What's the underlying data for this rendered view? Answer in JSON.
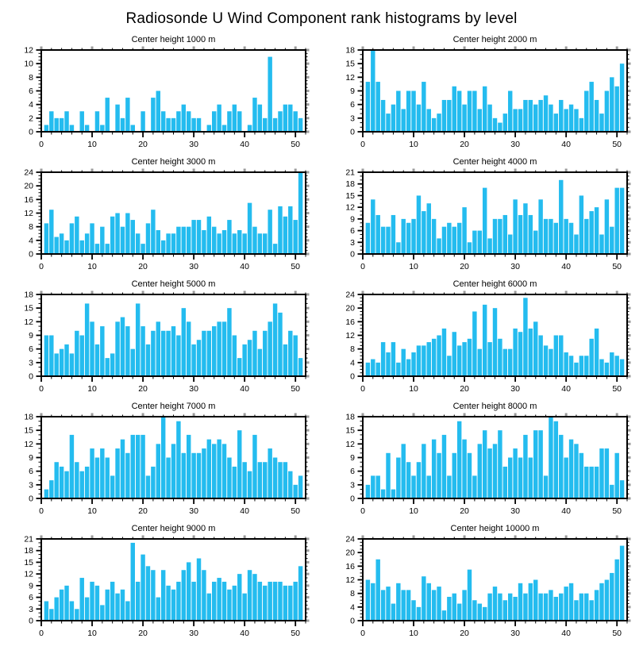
{
  "page_title": "Radiosonde U Wind Component rank histograms by level",
  "colors": {
    "bar": "#24BCEF",
    "frame": "#000000",
    "tick": "#000000",
    "major_alt_tick": "#9a9a9a",
    "text": "#000000"
  },
  "chart_data": [
    {
      "type": "bar",
      "title": "Center height 1000 m",
      "xlabel": "",
      "ylabel": "",
      "xlim": [
        0,
        52
      ],
      "ylim": [
        0,
        12
      ],
      "ytick_step": 2,
      "y_minor_step": 0.5,
      "xticks": [
        0,
        10,
        20,
        30,
        40,
        50
      ],
      "x_minor_step": 2,
      "x_start": 1,
      "legend": "none",
      "grid": false,
      "values": [
        1,
        3,
        2,
        2,
        3,
        1,
        0,
        3,
        1,
        0,
        3,
        1,
        5,
        0,
        4,
        2,
        5,
        1,
        0,
        3,
        0,
        5,
        6,
        3,
        2,
        2,
        3,
        4,
        3,
        2,
        2,
        0,
        1,
        3,
        4,
        1,
        3,
        4,
        3,
        0,
        1,
        5,
        4,
        2,
        11,
        2,
        3,
        4,
        4,
        3,
        2
      ]
    },
    {
      "type": "bar",
      "title": "Center height 2000 m",
      "xlabel": "",
      "ylabel": "",
      "xlim": [
        0,
        52
      ],
      "ylim": [
        0,
        18
      ],
      "ytick_step": 3,
      "y_minor_step": 1,
      "xticks": [
        0,
        10,
        20,
        30,
        40,
        50
      ],
      "x_minor_step": 2,
      "x_start": 1,
      "legend": "none",
      "grid": false,
      "values": [
        11,
        18,
        11,
        7,
        4,
        6,
        9,
        5,
        9,
        9,
        6,
        11,
        5,
        3,
        4,
        7,
        7,
        10,
        9,
        6,
        9,
        9,
        5,
        10,
        6,
        3,
        2,
        4,
        9,
        5,
        5,
        7,
        7,
        6,
        7,
        8,
        6,
        4,
        7,
        5,
        6,
        5,
        3,
        9,
        11,
        7,
        4,
        9,
        12,
        10,
        15
      ]
    },
    {
      "type": "bar",
      "title": "Center height 3000 m",
      "xlabel": "",
      "ylabel": "",
      "xlim": [
        0,
        52
      ],
      "ylim": [
        0,
        24
      ],
      "ytick_step": 4,
      "y_minor_step": 1,
      "xticks": [
        0,
        10,
        20,
        30,
        40,
        50
      ],
      "x_minor_step": 2,
      "x_start": 1,
      "legend": "none",
      "grid": false,
      "values": [
        9,
        13,
        5,
        6,
        4,
        9,
        11,
        4,
        6,
        9,
        3,
        8,
        3,
        11,
        12,
        8,
        12,
        10,
        6,
        3,
        9,
        13,
        7,
        4,
        6,
        6,
        8,
        8,
        8,
        10,
        10,
        7,
        11,
        8,
        6,
        7,
        10,
        6,
        7,
        6,
        15,
        8,
        6,
        6,
        13,
        3,
        14,
        11,
        14,
        10,
        24
      ]
    },
    {
      "type": "bar",
      "title": "Center height 4000 m",
      "xlabel": "",
      "ylabel": "",
      "xlim": [
        0,
        52
      ],
      "ylim": [
        0,
        21
      ],
      "ytick_step": 3,
      "y_minor_step": 1,
      "xticks": [
        0,
        10,
        20,
        30,
        40,
        50
      ],
      "x_minor_step": 2,
      "x_start": 1,
      "legend": "none",
      "grid": false,
      "values": [
        8,
        14,
        10,
        7,
        7,
        10,
        3,
        9,
        8,
        9,
        15,
        11,
        13,
        9,
        4,
        7,
        8,
        7,
        8,
        12,
        3,
        6,
        6,
        17,
        4,
        9,
        9,
        10,
        5,
        14,
        10,
        13,
        10,
        6,
        14,
        9,
        9,
        8,
        19,
        9,
        8,
        5,
        15,
        9,
        11,
        12,
        5,
        14,
        7,
        17,
        17
      ]
    },
    {
      "type": "bar",
      "title": "Center height 5000 m",
      "xlabel": "",
      "ylabel": "",
      "xlim": [
        0,
        52
      ],
      "ylim": [
        0,
        18
      ],
      "ytick_step": 3,
      "y_minor_step": 1,
      "xticks": [
        0,
        10,
        20,
        30,
        40,
        50
      ],
      "x_minor_step": 2,
      "x_start": 1,
      "legend": "none",
      "grid": false,
      "values": [
        9,
        9,
        5,
        6,
        7,
        5,
        10,
        9,
        16,
        12,
        7,
        11,
        4,
        5,
        12,
        13,
        11,
        6,
        16,
        11,
        7,
        10,
        12,
        10,
        10,
        11,
        9,
        15,
        12,
        7,
        8,
        10,
        10,
        11,
        12,
        12,
        15,
        9,
        4,
        7,
        8,
        10,
        6,
        10,
        12,
        16,
        14,
        7,
        10,
        9,
        4
      ]
    },
    {
      "type": "bar",
      "title": "Center height 6000 m",
      "xlabel": "",
      "ylabel": "",
      "xlim": [
        0,
        52
      ],
      "ylim": [
        0,
        24
      ],
      "ytick_step": 4,
      "y_minor_step": 1,
      "xticks": [
        0,
        10,
        20,
        30,
        40,
        50
      ],
      "x_minor_step": 2,
      "x_start": 1,
      "legend": "none",
      "grid": false,
      "values": [
        4,
        5,
        4,
        10,
        7,
        10,
        4,
        8,
        5,
        7,
        9,
        9,
        10,
        11,
        12,
        14,
        6,
        13,
        9,
        10,
        11,
        19,
        8,
        21,
        10,
        20,
        11,
        8,
        8,
        14,
        13,
        23,
        14,
        16,
        12,
        9,
        8,
        12,
        12,
        7,
        6,
        4,
        6,
        6,
        11,
        14,
        5,
        4,
        7,
        6,
        5
      ]
    },
    {
      "type": "bar",
      "title": "Center height 7000 m",
      "xlabel": "",
      "ylabel": "",
      "xlim": [
        0,
        52
      ],
      "ylim": [
        0,
        18
      ],
      "ytick_step": 3,
      "y_minor_step": 1,
      "xticks": [
        0,
        10,
        20,
        30,
        40,
        50
      ],
      "x_minor_step": 2,
      "x_start": 1,
      "legend": "none",
      "grid": false,
      "values": [
        2,
        4,
        8,
        7,
        6,
        14,
        8,
        6,
        7,
        11,
        9,
        11,
        9,
        5,
        11,
        13,
        10,
        14,
        14,
        14,
        5,
        7,
        12,
        18,
        9,
        12,
        17,
        10,
        14,
        10,
        10,
        11,
        13,
        12,
        13,
        12,
        9,
        7,
        15,
        8,
        6,
        14,
        8,
        8,
        11,
        9,
        8,
        8,
        6,
        3,
        5
      ]
    },
    {
      "type": "bar",
      "title": "Center height 8000 m",
      "xlabel": "",
      "ylabel": "",
      "xlim": [
        0,
        52
      ],
      "ylim": [
        0,
        18
      ],
      "ytick_step": 3,
      "y_minor_step": 1,
      "xticks": [
        0,
        10,
        20,
        30,
        40,
        50
      ],
      "x_minor_step": 2,
      "x_start": 1,
      "legend": "none",
      "grid": false,
      "values": [
        3,
        5,
        5,
        2,
        10,
        2,
        9,
        12,
        8,
        5,
        8,
        12,
        5,
        13,
        10,
        14,
        5,
        10,
        17,
        13,
        10,
        5,
        12,
        15,
        11,
        12,
        15,
        7,
        9,
        11,
        9,
        14,
        9,
        15,
        15,
        5,
        18,
        17,
        14,
        9,
        13,
        12,
        10,
        7,
        7,
        7,
        11,
        11,
        3,
        10,
        4
      ]
    },
    {
      "type": "bar",
      "title": "Center height 9000 m",
      "xlabel": "",
      "ylabel": "",
      "xlim": [
        0,
        52
      ],
      "ylim": [
        0,
        21
      ],
      "ytick_step": 3,
      "y_minor_step": 1,
      "xticks": [
        0,
        10,
        20,
        30,
        40,
        50
      ],
      "x_minor_step": 2,
      "x_start": 1,
      "legend": "none",
      "grid": false,
      "values": [
        5,
        3,
        6,
        8,
        9,
        5,
        3,
        11,
        6,
        10,
        9,
        4,
        8,
        10,
        7,
        8,
        5,
        20,
        10,
        17,
        14,
        13,
        6,
        13,
        9,
        8,
        10,
        13,
        15,
        10,
        16,
        13,
        7,
        10,
        11,
        10,
        8,
        9,
        12,
        7,
        13,
        12,
        10,
        9,
        10,
        10,
        10,
        9,
        9,
        10,
        14
      ]
    },
    {
      "type": "bar",
      "title": "Center height 10000 m",
      "xlabel": "",
      "ylabel": "",
      "xlim": [
        0,
        52
      ],
      "ylim": [
        0,
        24
      ],
      "ytick_step": 4,
      "y_minor_step": 1,
      "xticks": [
        0,
        10,
        20,
        30,
        40,
        50
      ],
      "x_minor_step": 2,
      "x_start": 1,
      "legend": "none",
      "grid": false,
      "values": [
        12,
        11,
        18,
        9,
        10,
        5,
        11,
        9,
        9,
        6,
        4,
        13,
        11,
        9,
        10,
        3,
        7,
        8,
        5,
        9,
        15,
        6,
        5,
        4,
        8,
        10,
        8,
        6,
        8,
        7,
        11,
        8,
        11,
        12,
        8,
        8,
        9,
        7,
        8,
        10,
        11,
        6,
        8,
        8,
        6,
        9,
        11,
        12,
        14,
        18,
        22
      ]
    }
  ]
}
